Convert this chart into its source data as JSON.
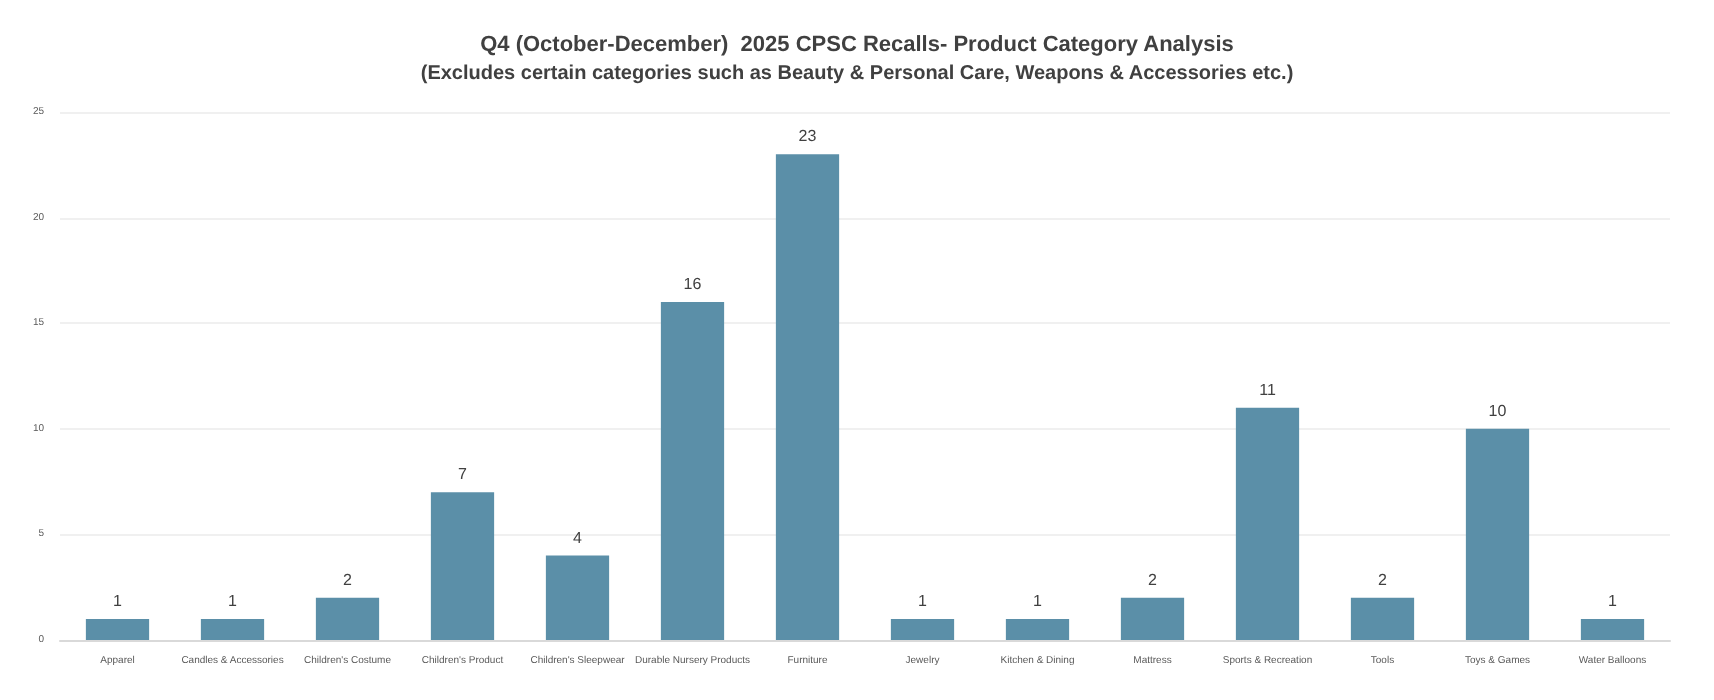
{
  "chart_data": {
    "type": "bar",
    "title": "Q4 (October-December)  2025 CPSC Recalls- Product Category Analysis",
    "subtitle": "(Excludes certain categories such as Beauty & Personal Care, Weapons & Accessories etc.)",
    "categories": [
      "Apparel",
      "Candles & Accessories",
      "Children's Costume",
      "Children's Product",
      "Children's Sleepwear",
      "Durable Nursery Products",
      "Furniture",
      "Jewelry",
      "Kitchen & Dining",
      "Mattress",
      "Sports & Recreation",
      "Tools",
      "Toys & Games",
      "Water Balloons"
    ],
    "values": [
      1,
      1,
      2,
      7,
      4,
      16,
      23,
      1,
      1,
      2,
      11,
      2,
      10,
      1
    ],
    "color": "#5b8fa8",
    "ylim": [
      0,
      25
    ],
    "yticks": [
      0,
      5,
      10,
      15,
      20,
      25
    ],
    "grid": "y",
    "data_labels": true
  }
}
